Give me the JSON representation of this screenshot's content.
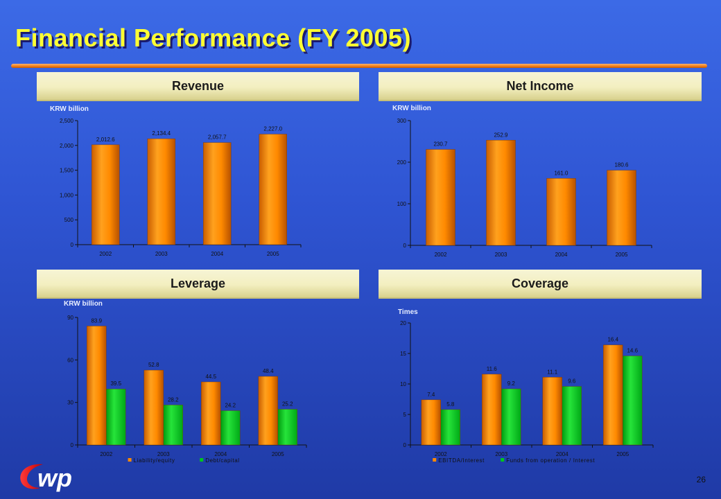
{
  "slide": {
    "title": "Financial Performance (FY 2005)",
    "page_number": "26"
  },
  "panels": {
    "revenue": {
      "header": "Revenue",
      "unit": "KRW billion"
    },
    "net_income": {
      "header": "Net Income",
      "unit": "KRW billion"
    },
    "leverage": {
      "header": "Leverage",
      "unit": "KRW billion"
    },
    "coverage": {
      "header": "Coverage",
      "unit": "Times"
    }
  },
  "logo": {
    "text": "wp"
  },
  "colors": {
    "orange_series": "#ff8a00",
    "green_series": "#00c81a",
    "header_bg": "#f3efc0",
    "title": "#ffff33"
  },
  "chart_data": [
    {
      "id": "revenue",
      "type": "bar",
      "title": "Revenue",
      "ylabel": "KRW billion",
      "categories": [
        "2002",
        "2003",
        "2004",
        "2005"
      ],
      "values": [
        2012.6,
        2134.4,
        2057.7,
        2227.0
      ],
      "value_labels": [
        "2,012.6",
        "2,134.4",
        "2,057.7",
        "2,227.0"
      ],
      "ylim": [
        0,
        2500
      ],
      "yticks": [
        0,
        500,
        1000,
        1500,
        2000,
        2500
      ],
      "ytick_labels": [
        "0",
        "500",
        "1,000",
        "1,500",
        "2,000",
        "2,500"
      ]
    },
    {
      "id": "net_income",
      "type": "bar",
      "title": "Net Income",
      "ylabel": "KRW billion",
      "categories": [
        "2002",
        "2003",
        "2004",
        "2005"
      ],
      "values": [
        230.7,
        252.9,
        161.0,
        180.6
      ],
      "value_labels": [
        "230.7",
        "252.9",
        "161.0",
        "180.6"
      ],
      "ylim": [
        0,
        300
      ],
      "yticks": [
        0,
        100,
        200,
        300
      ],
      "ytick_labels": [
        "0",
        "100",
        "200",
        "300"
      ]
    },
    {
      "id": "leverage",
      "type": "bar",
      "title": "Leverage",
      "ylabel": "KRW billion",
      "categories": [
        "2002",
        "2003",
        "2004",
        "2005"
      ],
      "series": [
        {
          "name": "Liability/equity",
          "values": [
            83.9,
            52.8,
            44.5,
            48.4
          ],
          "value_labels": [
            "83.9",
            "52.8",
            "44.5",
            "48.4"
          ]
        },
        {
          "name": "Debt/capital",
          "values": [
            39.5,
            28.2,
            24.2,
            25.2
          ],
          "value_labels": [
            "39.5",
            "28.2",
            "24.2",
            "25.2"
          ]
        }
      ],
      "ylim": [
        0,
        90
      ],
      "yticks": [
        0,
        30,
        60,
        90
      ],
      "ytick_labels": [
        "0",
        "30",
        "60",
        "90"
      ],
      "legend": "bottom"
    },
    {
      "id": "coverage",
      "type": "bar",
      "title": "Coverage",
      "ylabel": "Times",
      "categories": [
        "2002",
        "2003",
        "2004",
        "2005"
      ],
      "series": [
        {
          "name": "EBITDA/Interest",
          "values": [
            7.4,
            11.6,
            11.1,
            16.4
          ],
          "value_labels": [
            "7.4",
            "11.6",
            "11.1",
            "16.4"
          ]
        },
        {
          "name": "Funds from operation / Interest",
          "values": [
            5.8,
            9.2,
            9.6,
            14.6
          ],
          "value_labels": [
            "5.8",
            "9.2",
            "9.6",
            "14.6"
          ]
        }
      ],
      "ylim": [
        0,
        20
      ],
      "yticks": [
        0,
        5,
        10,
        15,
        20
      ],
      "ytick_labels": [
        "0",
        "5",
        "10",
        "15",
        "20"
      ],
      "legend": "bottom"
    }
  ]
}
